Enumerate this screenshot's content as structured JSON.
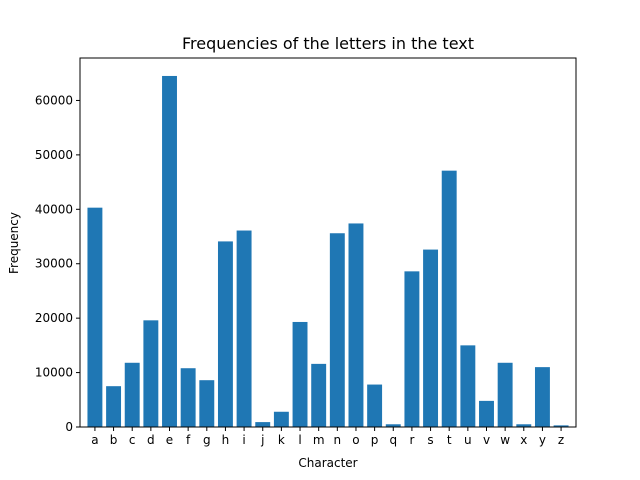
{
  "chart_data": {
    "type": "bar",
    "title": "Frequencies of the letters in the text",
    "xlabel": "Character",
    "ylabel": "Frequency",
    "categories": [
      "a",
      "b",
      "c",
      "d",
      "e",
      "f",
      "g",
      "h",
      "i",
      "j",
      "k",
      "l",
      "m",
      "n",
      "o",
      "p",
      "q",
      "r",
      "s",
      "t",
      "u",
      "v",
      "w",
      "x",
      "y",
      "z"
    ],
    "values": [
      40300,
      7500,
      11800,
      19600,
      64500,
      10800,
      8600,
      34100,
      36100,
      900,
      2800,
      19300,
      11600,
      35600,
      37400,
      7800,
      500,
      28600,
      32600,
      47100,
      15000,
      4800,
      11800,
      500,
      11000,
      300
    ],
    "ylim": [
      0,
      67800
    ],
    "yticks": [
      0,
      10000,
      20000,
      30000,
      40000,
      50000,
      60000
    ],
    "color": "#1f77b4",
    "grid": false
  }
}
